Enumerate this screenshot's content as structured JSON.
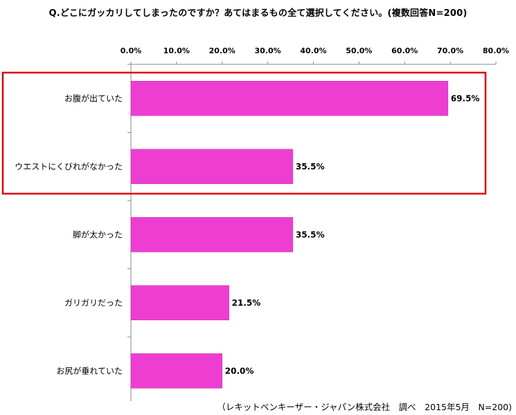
{
  "title": "Q.どこにガッカリしてしまったのですか？あてはまるもの全て選択してください。(複数回答N=200)",
  "source_note": "（レキットベンキーザー・ジャパン株式会社　調べ　2015年5月　N=200)",
  "colors": {
    "bar": "#ee3ed1",
    "highlight_box": "#d8000a",
    "axis": "#888888"
  },
  "chart_data": {
    "type": "bar",
    "orientation": "horizontal",
    "title": "Q.どこにガッカリしてしまったのですか？あてはまるもの全て選択してください。(複数回答N=200)",
    "categories": [
      "お腹が出ていた",
      "ウエストにくびれがなかった",
      "脚が太かった",
      "ガリガリだった",
      "お尻が垂れていた"
    ],
    "values": [
      69.5,
      35.5,
      35.5,
      21.5,
      20.0
    ],
    "value_labels": [
      "69.5%",
      "35.5%",
      "35.5%",
      "21.5%",
      "20.0%"
    ],
    "xlim": [
      0,
      80
    ],
    "ticks": [
      0,
      10,
      20,
      30,
      40,
      50,
      60,
      70,
      80
    ],
    "tick_labels": [
      "0.0%",
      "10.0%",
      "20.0%",
      "30.0%",
      "40.0%",
      "50.0%",
      "60.0%",
      "70.0%",
      "80.0%"
    ],
    "axis_position": "top",
    "grid": false,
    "legend": "none",
    "highlighted_categories": [
      "お腹が出ていた",
      "ウエストにくびれがなかった"
    ]
  }
}
